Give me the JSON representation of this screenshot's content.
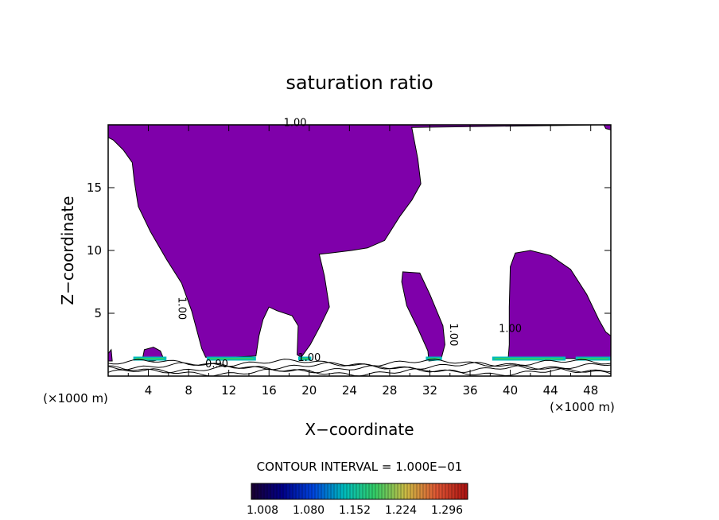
{
  "chart_data": {
    "type": "contour",
    "title": "saturation ratio",
    "xlabel": "X−coordinate",
    "ylabel": "Z−coordinate",
    "x_unit_label": "(×1000 m)",
    "y_unit_label": "(×1000 m)",
    "xlim": [
      0,
      50
    ],
    "ylim": [
      0,
      20
    ],
    "x_ticks": [
      4,
      8,
      12,
      16,
      20,
      24,
      28,
      32,
      36,
      40,
      44,
      48
    ],
    "y_ticks": [
      5,
      10,
      15
    ],
    "contour_interval_label": "CONTOUR INTERVAL = 1.000E−01",
    "contour_labels": [
      {
        "text": "1.00",
        "x": 18.6,
        "y": 19.9
      },
      {
        "text": "1.00",
        "x": 7.0,
        "y": 5.4
      },
      {
        "text": "0.90",
        "x": 10.8,
        "y": 0.7
      },
      {
        "text": "1.00",
        "x": 20.0,
        "y": 1.2
      },
      {
        "text": "1.00",
        "x": 34.0,
        "y": 3.3
      },
      {
        "text": "1.00",
        "x": 40.0,
        "y": 3.5
      }
    ],
    "fill_color": "#7f00aa",
    "colorbar": {
      "tick_labels": [
        "1.008",
        "1.080",
        "1.152",
        "1.224",
        "1.296"
      ],
      "colors": [
        "#1a0030",
        "#000088",
        "#0044dd",
        "#00bbbb",
        "#33cc66",
        "#ccbb44",
        "#dd5533",
        "#aa1111"
      ]
    },
    "regions": [
      {
        "name": "upper supersaturated region",
        "polygon": [
          [
            0,
            20
          ],
          [
            49.9,
            20
          ],
          [
            30.2,
            19.8
          ],
          [
            30.8,
            17.3
          ],
          [
            31.1,
            15.3
          ],
          [
            30.2,
            14
          ],
          [
            29,
            12.7
          ],
          [
            27.5,
            10.8
          ],
          [
            25.8,
            10.2
          ],
          [
            24.2,
            10
          ],
          [
            22.1,
            9.8
          ],
          [
            21,
            9.7
          ],
          [
            21.5,
            8
          ],
          [
            22,
            5.5
          ],
          [
            21.1,
            4
          ],
          [
            20.1,
            2.5
          ],
          [
            19.2,
            1.5
          ],
          [
            18.8,
            1.7
          ],
          [
            18.9,
            4
          ],
          [
            18.3,
            4.8
          ],
          [
            16.8,
            5.2
          ],
          [
            16,
            5.5
          ],
          [
            15.4,
            4.5
          ],
          [
            15,
            3.2
          ],
          [
            14.7,
            1.6
          ],
          [
            12.3,
            1.5
          ],
          [
            11.6,
            1.5
          ],
          [
            9.7,
            1.5
          ],
          [
            9.3,
            2.2
          ],
          [
            8.3,
            5.2
          ],
          [
            7.3,
            7.4
          ],
          [
            5.8,
            9.3
          ],
          [
            4.2,
            11.5
          ],
          [
            3,
            13.5
          ],
          [
            2.6,
            15.5
          ],
          [
            2.4,
            17
          ],
          [
            1.5,
            18
          ],
          [
            0.5,
            18.8
          ],
          [
            0,
            19
          ]
        ]
      },
      {
        "name": "mid column",
        "polygon": [
          [
            29.3,
            8.3
          ],
          [
            31,
            8.2
          ],
          [
            32,
            6.5
          ],
          [
            33.3,
            4
          ],
          [
            33.5,
            2.5
          ],
          [
            33.1,
            1.3
          ],
          [
            31.9,
            1.2
          ],
          [
            31.8,
            2
          ],
          [
            30.8,
            3.8
          ],
          [
            29.7,
            5.6
          ],
          [
            29.2,
            7.5
          ]
        ]
      },
      {
        "name": "right cell",
        "polygon": [
          [
            40.5,
            9.8
          ],
          [
            42,
            10
          ],
          [
            44,
            9.6
          ],
          [
            46,
            8.5
          ],
          [
            47.6,
            6.5
          ],
          [
            48.8,
            4.5
          ],
          [
            49.5,
            3.5
          ],
          [
            50,
            3.2
          ],
          [
            50,
            1.3
          ],
          [
            48.5,
            1.3
          ],
          [
            46,
            1.4
          ],
          [
            43.5,
            1.4
          ],
          [
            40.5,
            1.4
          ],
          [
            39.8,
            1.5
          ],
          [
            39.9,
            2.5
          ],
          [
            39.9,
            5.5
          ],
          [
            40,
            8.7
          ]
        ]
      },
      {
        "name": "left low patch",
        "polygon": [
          [
            0,
            1.8
          ],
          [
            0.3,
            2.1
          ],
          [
            0.4,
            1.2
          ],
          [
            0,
            1.2
          ]
        ]
      },
      {
        "name": "patch near x 4",
        "polygon": [
          [
            3.4,
            1.3
          ],
          [
            3.6,
            2.1
          ],
          [
            4.5,
            2.3
          ],
          [
            5.2,
            2
          ],
          [
            5.5,
            1.4
          ],
          [
            4.5,
            1.2
          ]
        ]
      },
      {
        "name": "top right patch",
        "polygon": [
          [
            49.3,
            20
          ],
          [
            50,
            20
          ],
          [
            50,
            19.6
          ],
          [
            49.5,
            19.7
          ]
        ]
      }
    ]
  }
}
